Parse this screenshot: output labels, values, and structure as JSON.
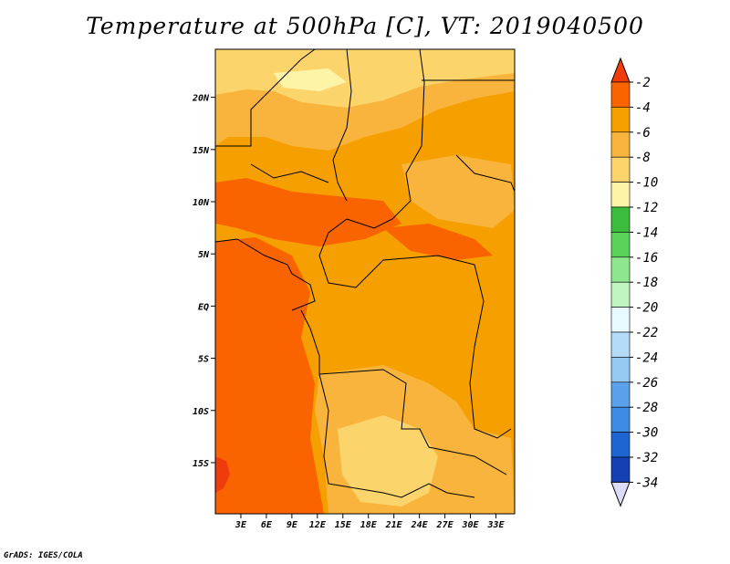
{
  "chart_data": {
    "type": "heatmap",
    "title": "Temperature at 500hPa [C], VT: 2019040500",
    "variable": "Temperature at 500hPa",
    "units": "C",
    "valid_time": "2019040500",
    "x_ticks": [
      "3E",
      "6E",
      "9E",
      "12E",
      "15E",
      "18E",
      "21E",
      "24E",
      "27E",
      "30E",
      "33E"
    ],
    "x_tick_values": [
      3,
      6,
      9,
      12,
      15,
      18,
      21,
      24,
      27,
      30,
      33
    ],
    "y_ticks": [
      "20N",
      "15N",
      "10N",
      "5N",
      "EQ",
      "5S",
      "10S",
      "15S"
    ],
    "y_tick_values": [
      20,
      15,
      10,
      5,
      0,
      -5,
      -10,
      -15
    ],
    "xlim": [
      0,
      35.2
    ],
    "ylim": [
      -19.9,
      24.6
    ],
    "colorbar": {
      "labels": [
        "-2",
        "-4",
        "-6",
        "-8",
        "-10",
        "-12",
        "-14",
        "-16",
        "-18",
        "-20",
        "-22",
        "-24",
        "-26",
        "-28",
        "-30",
        "-32",
        "-34"
      ],
      "colors": [
        "#f03c0c",
        "#fa6400",
        "#f5a000",
        "#f8b43c",
        "#fcd46c",
        "#fef4a8",
        "#3cbc3c",
        "#5ad25a",
        "#8ee68e",
        "#c0f5c0",
        "#e6faff",
        "#b4dcf8",
        "#96c8f0",
        "#5aa0eb",
        "#3c8ce6",
        "#1e64d2",
        "#1440b4",
        "#0c1c7c",
        "#dcdcfa"
      ]
    },
    "field_levels_present": [
      "-4",
      "-6",
      "-8",
      "-10"
    ]
  },
  "credit": "GrADS: IGES/COLA"
}
